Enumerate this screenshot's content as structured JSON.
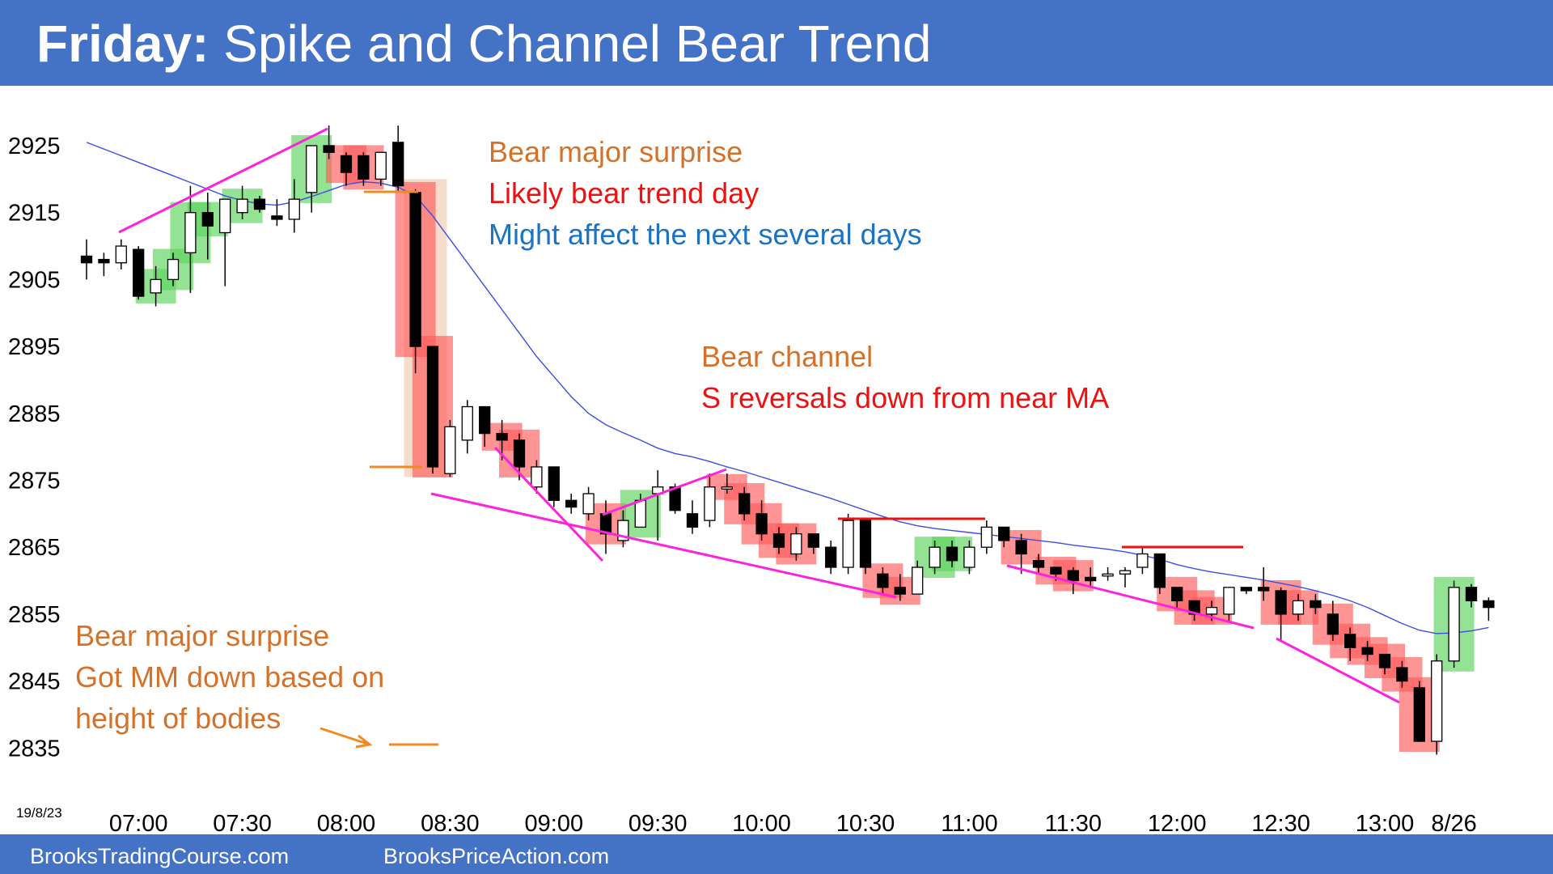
{
  "header": {
    "day": "Friday:",
    "subtitle": "Spike and Channel Bear Trend"
  },
  "footer": {
    "left_link": "BrooksTradingCourse.com",
    "right_link": "BrooksPriceAction.com"
  },
  "colors": {
    "header_bar": "#4472c4",
    "bull_highlight": "#5bd35b",
    "bear_highlight": "#ff5b5b",
    "moving_average": "#3b4fe0",
    "trendline": "#ff22dd",
    "resistance": "#ee1111",
    "orange_text": "#d4722a",
    "red_text": "#ee1111",
    "blue_text": "#1a73c4"
  },
  "annotations": {
    "top_1": "Bear major surprise",
    "top_2": "Likely bear trend day",
    "top_3": "Might affect the next several days",
    "mid_1": "Bear channel",
    "mid_2": "S reversals down from near MA",
    "bottom_1": "Bear major surprise",
    "bottom_2": "Got MM down based on",
    "bottom_3": "height of bodies"
  },
  "chart_data": {
    "type": "candlestick",
    "symbol_date": "19/8/23",
    "y_ticks": [
      2925,
      2915,
      2905,
      2895,
      2885,
      2875,
      2865,
      2855,
      2845,
      2835
    ],
    "ylim": [
      2831,
      2938
    ],
    "x_ticks": [
      {
        "label": "07:00",
        "bar": 3
      },
      {
        "label": "07:30",
        "bar": 9
      },
      {
        "label": "08:00",
        "bar": 15
      },
      {
        "label": "08:30",
        "bar": 21
      },
      {
        "label": "09:00",
        "bar": 27
      },
      {
        "label": "09:30",
        "bar": 33
      },
      {
        "label": "10:00",
        "bar": 39
      },
      {
        "label": "10:30",
        "bar": 45
      },
      {
        "label": "11:00",
        "bar": 51
      },
      {
        "label": "11:30",
        "bar": 57
      },
      {
        "label": "12:00",
        "bar": 63
      },
      {
        "label": "12:30",
        "bar": 69
      },
      {
        "label": "13:00",
        "bar": 75
      },
      {
        "label": "8/26",
        "bar": 79
      }
    ],
    "bars": [
      {
        "o": 2908.5,
        "h": 2911,
        "l": 2905,
        "c": 2907.5,
        "hl": ""
      },
      {
        "o": 2908,
        "h": 2909,
        "l": 2905.5,
        "c": 2907.5,
        "hl": ""
      },
      {
        "o": 2907.5,
        "h": 2911,
        "l": 2906.5,
        "c": 2910,
        "hl": ""
      },
      {
        "o": 2909.5,
        "h": 2910,
        "l": 2902,
        "c": 2902.5,
        "hl": ""
      },
      {
        "o": 2903,
        "h": 2907,
        "l": 2901,
        "c": 2905,
        "hl": "bull"
      },
      {
        "o": 2905,
        "h": 2909,
        "l": 2904,
        "c": 2908,
        "hl": "bull"
      },
      {
        "o": 2909,
        "h": 2919,
        "l": 2903,
        "c": 2915,
        "hl": "bull"
      },
      {
        "o": 2915,
        "h": 2918,
        "l": 2908,
        "c": 2913,
        "hl": "bull"
      },
      {
        "o": 2912,
        "h": 2917,
        "l": 2904,
        "c": 2917,
        "hl": ""
      },
      {
        "o": 2915,
        "h": 2919,
        "l": 2914,
        "c": 2917,
        "hl": "bull"
      },
      {
        "o": 2917,
        "h": 2917.5,
        "l": 2915,
        "c": 2915.5,
        "hl": ""
      },
      {
        "o": 2914.5,
        "h": 2917,
        "l": 2913,
        "c": 2914,
        "hl": ""
      },
      {
        "o": 2914,
        "h": 2920,
        "l": 2912,
        "c": 2917,
        "hl": ""
      },
      {
        "o": 2918,
        "h": 2925,
        "l": 2915,
        "c": 2925,
        "hl": "bull"
      },
      {
        "o": 2925,
        "h": 2928,
        "l": 2923,
        "c": 2924,
        "hl": ""
      },
      {
        "o": 2923.5,
        "h": 2924,
        "l": 2919,
        "c": 2921,
        "hl": "bear"
      },
      {
        "o": 2923.5,
        "h": 2924,
        "l": 2919,
        "c": 2920,
        "hl": "bear"
      },
      {
        "o": 2920,
        "h": 2924,
        "l": 2919,
        "c": 2924,
        "hl": ""
      },
      {
        "o": 2925.5,
        "h": 2928,
        "l": 2918,
        "c": 2919,
        "hl": ""
      },
      {
        "o": 2918,
        "h": 2918.5,
        "l": 2891,
        "c": 2895,
        "hl": "bear"
      },
      {
        "o": 2895,
        "h": 2895,
        "l": 2876,
        "c": 2877,
        "hl": "bear"
      },
      {
        "o": 2876,
        "h": 2884,
        "l": 2875.5,
        "c": 2883,
        "hl": ""
      },
      {
        "o": 2881,
        "h": 2887,
        "l": 2879,
        "c": 2886,
        "hl": ""
      },
      {
        "o": 2886,
        "h": 2886,
        "l": 2880,
        "c": 2882,
        "hl": ""
      },
      {
        "o": 2882,
        "h": 2884,
        "l": 2878,
        "c": 2881,
        "hl": "bear"
      },
      {
        "o": 2881,
        "h": 2882,
        "l": 2875,
        "c": 2877,
        "hl": "bear"
      },
      {
        "o": 2874,
        "h": 2878,
        "l": 2873,
        "c": 2877,
        "hl": ""
      },
      {
        "o": 2877,
        "h": 2877,
        "l": 2871,
        "c": 2872,
        "hl": ""
      },
      {
        "o": 2872,
        "h": 2873,
        "l": 2870,
        "c": 2871,
        "hl": ""
      },
      {
        "o": 2870,
        "h": 2874,
        "l": 2869,
        "c": 2873,
        "hl": ""
      },
      {
        "o": 2870,
        "h": 2872,
        "l": 2864,
        "c": 2867,
        "hl": "bear"
      },
      {
        "o": 2866,
        "h": 2870.5,
        "l": 2865,
        "c": 2869,
        "hl": ""
      },
      {
        "o": 2868,
        "h": 2873,
        "l": 2868,
        "c": 2872,
        "hl": "bull"
      },
      {
        "o": 2873,
        "h": 2876.5,
        "l": 2866,
        "c": 2874,
        "hl": ""
      },
      {
        "o": 2874,
        "h": 2874.5,
        "l": 2870,
        "c": 2870.5,
        "hl": ""
      },
      {
        "o": 2870,
        "h": 2872,
        "l": 2867,
        "c": 2868,
        "hl": ""
      },
      {
        "o": 2869,
        "h": 2876,
        "l": 2868,
        "c": 2874,
        "hl": ""
      },
      {
        "o": 2874,
        "h": 2876,
        "l": 2873,
        "c": 2874,
        "hl": "bear"
      },
      {
        "o": 2873,
        "h": 2874,
        "l": 2869,
        "c": 2870,
        "hl": "bear"
      },
      {
        "o": 2870,
        "h": 2872,
        "l": 2866,
        "c": 2867,
        "hl": "bear"
      },
      {
        "o": 2867,
        "h": 2868,
        "l": 2864,
        "c": 2865,
        "hl": "bear"
      },
      {
        "o": 2864,
        "h": 2868,
        "l": 2863,
        "c": 2867,
        "hl": "bear"
      },
      {
        "o": 2867,
        "h": 2867,
        "l": 2864,
        "c": 2865,
        "hl": ""
      },
      {
        "o": 2865,
        "h": 2866,
        "l": 2861,
        "c": 2862,
        "hl": ""
      },
      {
        "o": 2862,
        "h": 2870,
        "l": 2861,
        "c": 2869,
        "hl": ""
      },
      {
        "o": 2869,
        "h": 2869,
        "l": 2861,
        "c": 2862,
        "hl": ""
      },
      {
        "o": 2861,
        "h": 2862,
        "l": 2858,
        "c": 2859,
        "hl": "bear"
      },
      {
        "o": 2859,
        "h": 2861,
        "l": 2857,
        "c": 2858,
        "hl": "bear"
      },
      {
        "o": 2858,
        "h": 2863,
        "l": 2858,
        "c": 2862,
        "hl": ""
      },
      {
        "o": 2862,
        "h": 2866,
        "l": 2861,
        "c": 2865,
        "hl": "bull"
      },
      {
        "o": 2865,
        "h": 2866,
        "l": 2862,
        "c": 2863,
        "hl": "bull"
      },
      {
        "o": 2862,
        "h": 2866,
        "l": 2861,
        "c": 2865,
        "hl": ""
      },
      {
        "o": 2865,
        "h": 2869,
        "l": 2864,
        "c": 2868,
        "hl": ""
      },
      {
        "o": 2868,
        "h": 2868,
        "l": 2865,
        "c": 2866,
        "hl": ""
      },
      {
        "o": 2866,
        "h": 2867,
        "l": 2861,
        "c": 2864,
        "hl": "bear"
      },
      {
        "o": 2863,
        "h": 2864,
        "l": 2861,
        "c": 2862,
        "hl": ""
      },
      {
        "o": 2862,
        "h": 2862,
        "l": 2860,
        "c": 2861,
        "hl": "bear"
      },
      {
        "o": 2861.5,
        "h": 2862,
        "l": 2858,
        "c": 2860,
        "hl": "bear"
      },
      {
        "o": 2860.5,
        "h": 2862,
        "l": 2859,
        "c": 2860,
        "hl": ""
      },
      {
        "o": 2861,
        "h": 2862,
        "l": 2860,
        "c": 2861,
        "hl": ""
      },
      {
        "o": 2861,
        "h": 2862,
        "l": 2859,
        "c": 2861.5,
        "hl": ""
      },
      {
        "o": 2862,
        "h": 2865,
        "l": 2861,
        "c": 2864,
        "hl": ""
      },
      {
        "o": 2864,
        "h": 2864,
        "l": 2858,
        "c": 2859,
        "hl": ""
      },
      {
        "o": 2859,
        "h": 2859,
        "l": 2856,
        "c": 2857,
        "hl": "bear"
      },
      {
        "o": 2857,
        "h": 2857,
        "l": 2854,
        "c": 2855,
        "hl": "bear"
      },
      {
        "o": 2855,
        "h": 2857,
        "l": 2854,
        "c": 2856,
        "hl": "bear"
      },
      {
        "o": 2855,
        "h": 2859,
        "l": 2854,
        "c": 2859,
        "hl": ""
      },
      {
        "o": 2859,
        "h": 2859,
        "l": 2858,
        "c": 2858.5,
        "hl": ""
      },
      {
        "o": 2859,
        "h": 2862,
        "l": 2857,
        "c": 2858.5,
        "hl": ""
      },
      {
        "o": 2858.5,
        "h": 2859,
        "l": 2851,
        "c": 2855,
        "hl": "bear"
      },
      {
        "o": 2855,
        "h": 2858,
        "l": 2854,
        "c": 2857,
        "hl": "bear"
      },
      {
        "o": 2857,
        "h": 2858,
        "l": 2855,
        "c": 2856,
        "hl": ""
      },
      {
        "o": 2855,
        "h": 2857,
        "l": 2851,
        "c": 2852,
        "hl": "bear"
      },
      {
        "o": 2852,
        "h": 2853,
        "l": 2848,
        "c": 2850,
        "hl": "bear"
      },
      {
        "o": 2850,
        "h": 2851,
        "l": 2848,
        "c": 2849,
        "hl": "bear"
      },
      {
        "o": 2849,
        "h": 2849,
        "l": 2846,
        "c": 2847,
        "hl": "bear"
      },
      {
        "o": 2847,
        "h": 2848,
        "l": 2844,
        "c": 2845,
        "hl": "bear"
      },
      {
        "o": 2844,
        "h": 2845,
        "l": 2836,
        "c": 2836,
        "hl": "bear"
      },
      {
        "o": 2836,
        "h": 2849,
        "l": 2834,
        "c": 2848,
        "hl": ""
      },
      {
        "o": 2848,
        "h": 2860,
        "l": 2847,
        "c": 2859,
        "hl": "bull"
      },
      {
        "o": 2859,
        "h": 2859.5,
        "l": 2856,
        "c": 2857,
        "hl": ""
      },
      {
        "o": 2857,
        "h": 2857.5,
        "l": 2854,
        "c": 2856,
        "hl": ""
      }
    ],
    "moving_average": [
      2925.5,
      2924.5,
      2923.5,
      2922.5,
      2921.5,
      2920.5,
      2919.5,
      2918.5,
      2917.5,
      2916.8,
      2916.3,
      2916.1,
      2916.6,
      2917.4,
      2918.3,
      2919.2,
      2919.6,
      2919.4,
      2918.8,
      2917.5,
      2914.5,
      2911,
      2907.5,
      2904,
      2900.5,
      2897,
      2893.5,
      2890.5,
      2887.5,
      2885,
      2883.3,
      2882.1,
      2881,
      2879.8,
      2879,
      2878.5,
      2877.8,
      2877,
      2876.3,
      2875.5,
      2874.7,
      2873.9,
      2873.1,
      2872.3,
      2871.4,
      2870.5,
      2869.6,
      2868.8,
      2868.2,
      2867.8,
      2867.5,
      2867.2,
      2866.9,
      2866.6,
      2866.3,
      2866,
      2865.7,
      2865.3,
      2865,
      2864.7,
      2864.3,
      2863.8,
      2863.2,
      2862.4,
      2861.8,
      2861.3,
      2860.9,
      2860.5,
      2860.1,
      2859.6,
      2859.1,
      2858.5,
      2857.8,
      2857,
      2856,
      2854.8,
      2853.6,
      2852.6,
      2852.1,
      2852.2,
      2852.5,
      2853
    ]
  }
}
